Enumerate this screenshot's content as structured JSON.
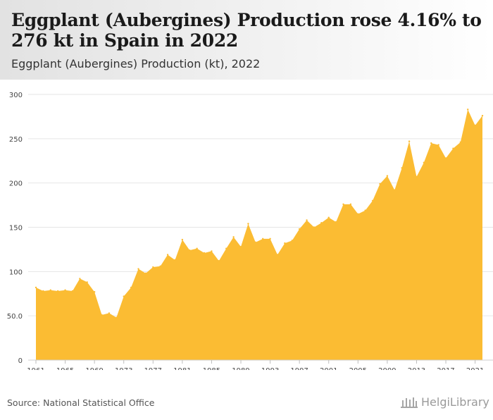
{
  "header": {
    "title": "Eggplant (Aubergines) Production rose 4.16% to 276 kt in Spain in 2022",
    "subtitle": "Eggplant (Aubergines) Production (kt), 2022"
  },
  "footer": {
    "source": "Source: National Statistical Office",
    "brand": "HelgiLibrary"
  },
  "colors": {
    "area": "#FBBC33",
    "grid": "#e6e6e6",
    "axis_text": "#444444"
  },
  "chart_data": {
    "type": "area",
    "title": "Eggplant (Aubergines) Production (kt), 2022",
    "ylim": [
      0,
      300
    ],
    "y_ticks": [
      {
        "value": 0,
        "label": "0"
      },
      {
        "value": 50,
        "label": "50.0"
      },
      {
        "value": 100,
        "label": "100"
      },
      {
        "value": 150,
        "label": "150"
      },
      {
        "value": 200,
        "label": "200"
      },
      {
        "value": 250,
        "label": "250"
      },
      {
        "value": 300,
        "label": "300"
      }
    ],
    "x_ticks": [
      "1961",
      "1965",
      "1969",
      "1973",
      "1977",
      "1981",
      "1985",
      "1989",
      "1993",
      "1997",
      "2001",
      "2005",
      "2009",
      "2013",
      "2017",
      "2021"
    ],
    "grid": true,
    "x": [
      1961,
      1962,
      1963,
      1964,
      1965,
      1966,
      1967,
      1968,
      1969,
      1970,
      1971,
      1972,
      1973,
      1974,
      1975,
      1976,
      1977,
      1978,
      1979,
      1980,
      1981,
      1982,
      1983,
      1984,
      1985,
      1986,
      1987,
      1988,
      1989,
      1990,
      1991,
      1992,
      1993,
      1994,
      1995,
      1996,
      1997,
      1998,
      1999,
      2000,
      2001,
      2002,
      2003,
      2004,
      2005,
      2006,
      2007,
      2008,
      2009,
      2010,
      2011,
      2012,
      2013,
      2014,
      2015,
      2016,
      2017,
      2018,
      2019,
      2020,
      2021,
      2022
    ],
    "values": [
      82,
      78,
      79,
      78,
      79,
      78,
      92,
      88,
      77,
      51,
      53,
      48,
      72,
      82,
      103,
      98,
      105,
      106,
      119,
      113,
      136,
      124,
      126,
      121,
      123,
      112,
      126,
      139,
      128,
      154,
      133,
      137,
      137,
      119,
      132,
      135,
      148,
      158,
      150,
      155,
      161,
      156,
      176,
      176,
      165,
      169,
      180,
      199,
      208,
      192,
      217,
      247,
      207,
      223,
      245,
      243,
      228,
      239,
      246,
      283,
      265,
      276
    ]
  }
}
